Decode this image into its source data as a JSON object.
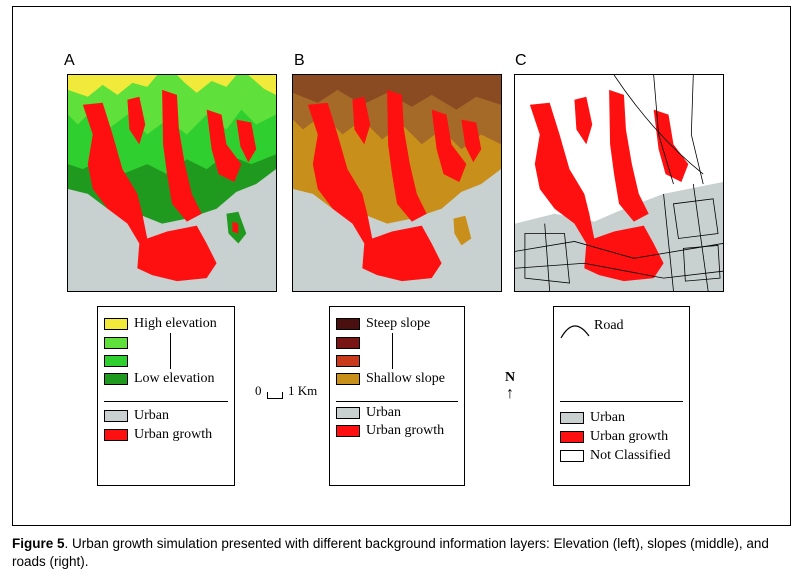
{
  "panels": [
    {
      "label": "A"
    },
    {
      "label": "B"
    },
    {
      "label": "C"
    }
  ],
  "legend_a": {
    "high": "High elevation",
    "low": "Low elevation",
    "urban": "Urban",
    "growth": "Urban growth"
  },
  "legend_b": {
    "steep": "Steep slope",
    "shallow": "Shallow slope",
    "urban": "Urban",
    "growth": "Urban growth"
  },
  "legend_c": {
    "road": "Road",
    "urban": "Urban",
    "growth": "Urban growth",
    "not_classified": "Not Classified"
  },
  "scale_bar": {
    "start": "0",
    "end": "1 Km"
  },
  "north_arrow": {
    "label": "N"
  },
  "caption": {
    "figure": "Figure 5",
    "text": ". Urban growth simulation presented with different background information layers: Elevation (left), slopes (middle), and roads (right)."
  },
  "colors": {
    "high_elevation": "#f2ea3a",
    "mid_elevation_1": "#5fe03a",
    "mid_elevation_2": "#2fcf2f",
    "low_elevation": "#1f9a1f",
    "steep_slope": "#4a1010",
    "slope_2": "#7a1515",
    "slope_3": "#c83a1a",
    "shallow_slope": "#c8901a",
    "urban": "#c8d0d0",
    "urban_growth": "#ff1010",
    "not_classified": "#ffffff"
  }
}
